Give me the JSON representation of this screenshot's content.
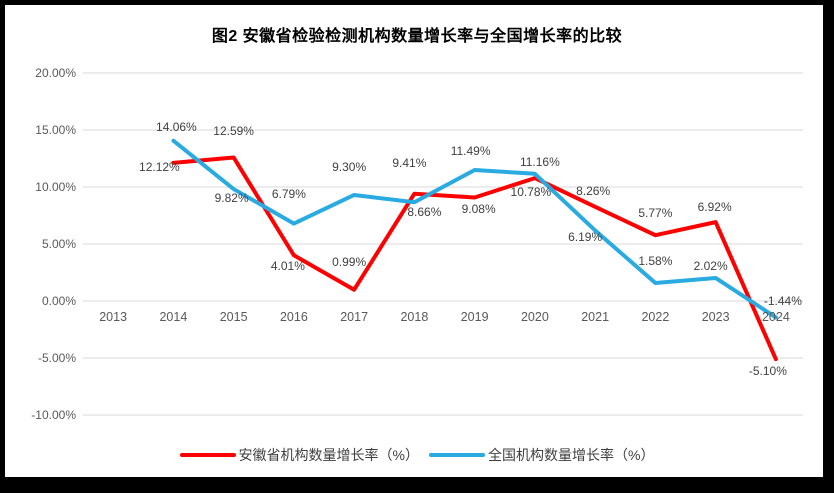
{
  "colors": {
    "anhui_red": "#FF0000",
    "national_blue": "#29ABE2",
    "gridline": "#D9D9D9",
    "axis_text": "#595959",
    "data_label_text": "#404040",
    "title_text": "#000000",
    "frame_border": "#000000",
    "background": "#FFFFFF"
  },
  "chart_data": {
    "type": "line",
    "title": "图2 安徽省检验检测机构数量增长率与全国增长率的比较",
    "categories": [
      "2013",
      "2014",
      "2015",
      "2016",
      "2017",
      "2018",
      "2019",
      "2020",
      "2021",
      "2022",
      "2023",
      "2024"
    ],
    "grid": true,
    "legend_position": "bottom",
    "y_axis": {
      "min": -10,
      "max": 20,
      "tick_step": 5,
      "tick_values": [
        20,
        15,
        10,
        5,
        0,
        -5,
        -10
      ],
      "tick_labels": [
        "20.00%",
        "15.00%",
        "10.00%",
        "5.00%",
        "0.00%",
        "-5.00%",
        "-10.00%"
      ]
    },
    "series": [
      {
        "name": "安徽省机构数量增长率（%）",
        "color": "#FF0000",
        "values": [
          null,
          12.12,
          12.59,
          4.01,
          0.99,
          9.41,
          9.08,
          10.78,
          8.26,
          5.77,
          6.92,
          -5.1
        ],
        "point_labels": [
          "",
          "12.12%",
          "12.59%",
          "4.01%",
          "0.99%",
          "9.41%",
          "9.08%",
          "10.78%",
          "8.26%",
          "5.77%",
          "6.92%",
          "-5.10%"
        ],
        "label_dx": [
          0,
          -14,
          0,
          -6,
          -5,
          -5,
          4,
          -4,
          -2,
          0,
          -1,
          -8
        ],
        "label_dy": [
          0,
          4,
          -26,
          11,
          -28,
          -31,
          12,
          14,
          -16,
          -22,
          -15,
          12
        ]
      },
      {
        "name": "全国机构数量增长率（%）",
        "color": "#29ABE2",
        "values": [
          null,
          14.06,
          9.82,
          6.79,
          9.3,
          8.66,
          11.49,
          11.16,
          6.19,
          1.58,
          2.02,
          -1.44
        ],
        "point_labels": [
          "",
          "14.06%",
          "9.82%",
          "6.79%",
          "9.30%",
          "8.66%",
          "11.49%",
          "11.16%",
          "6.19%",
          "1.58%",
          "2.02%",
          "-1.44%"
        ],
        "label_dx": [
          0,
          3,
          -2,
          -5,
          -5,
          10,
          -4,
          5,
          -10,
          0,
          -5,
          7
        ],
        "label_dy": [
          0,
          -14,
          9,
          -30,
          -28,
          10,
          -19,
          -12,
          7,
          -22,
          -12,
          -16
        ]
      }
    ]
  }
}
